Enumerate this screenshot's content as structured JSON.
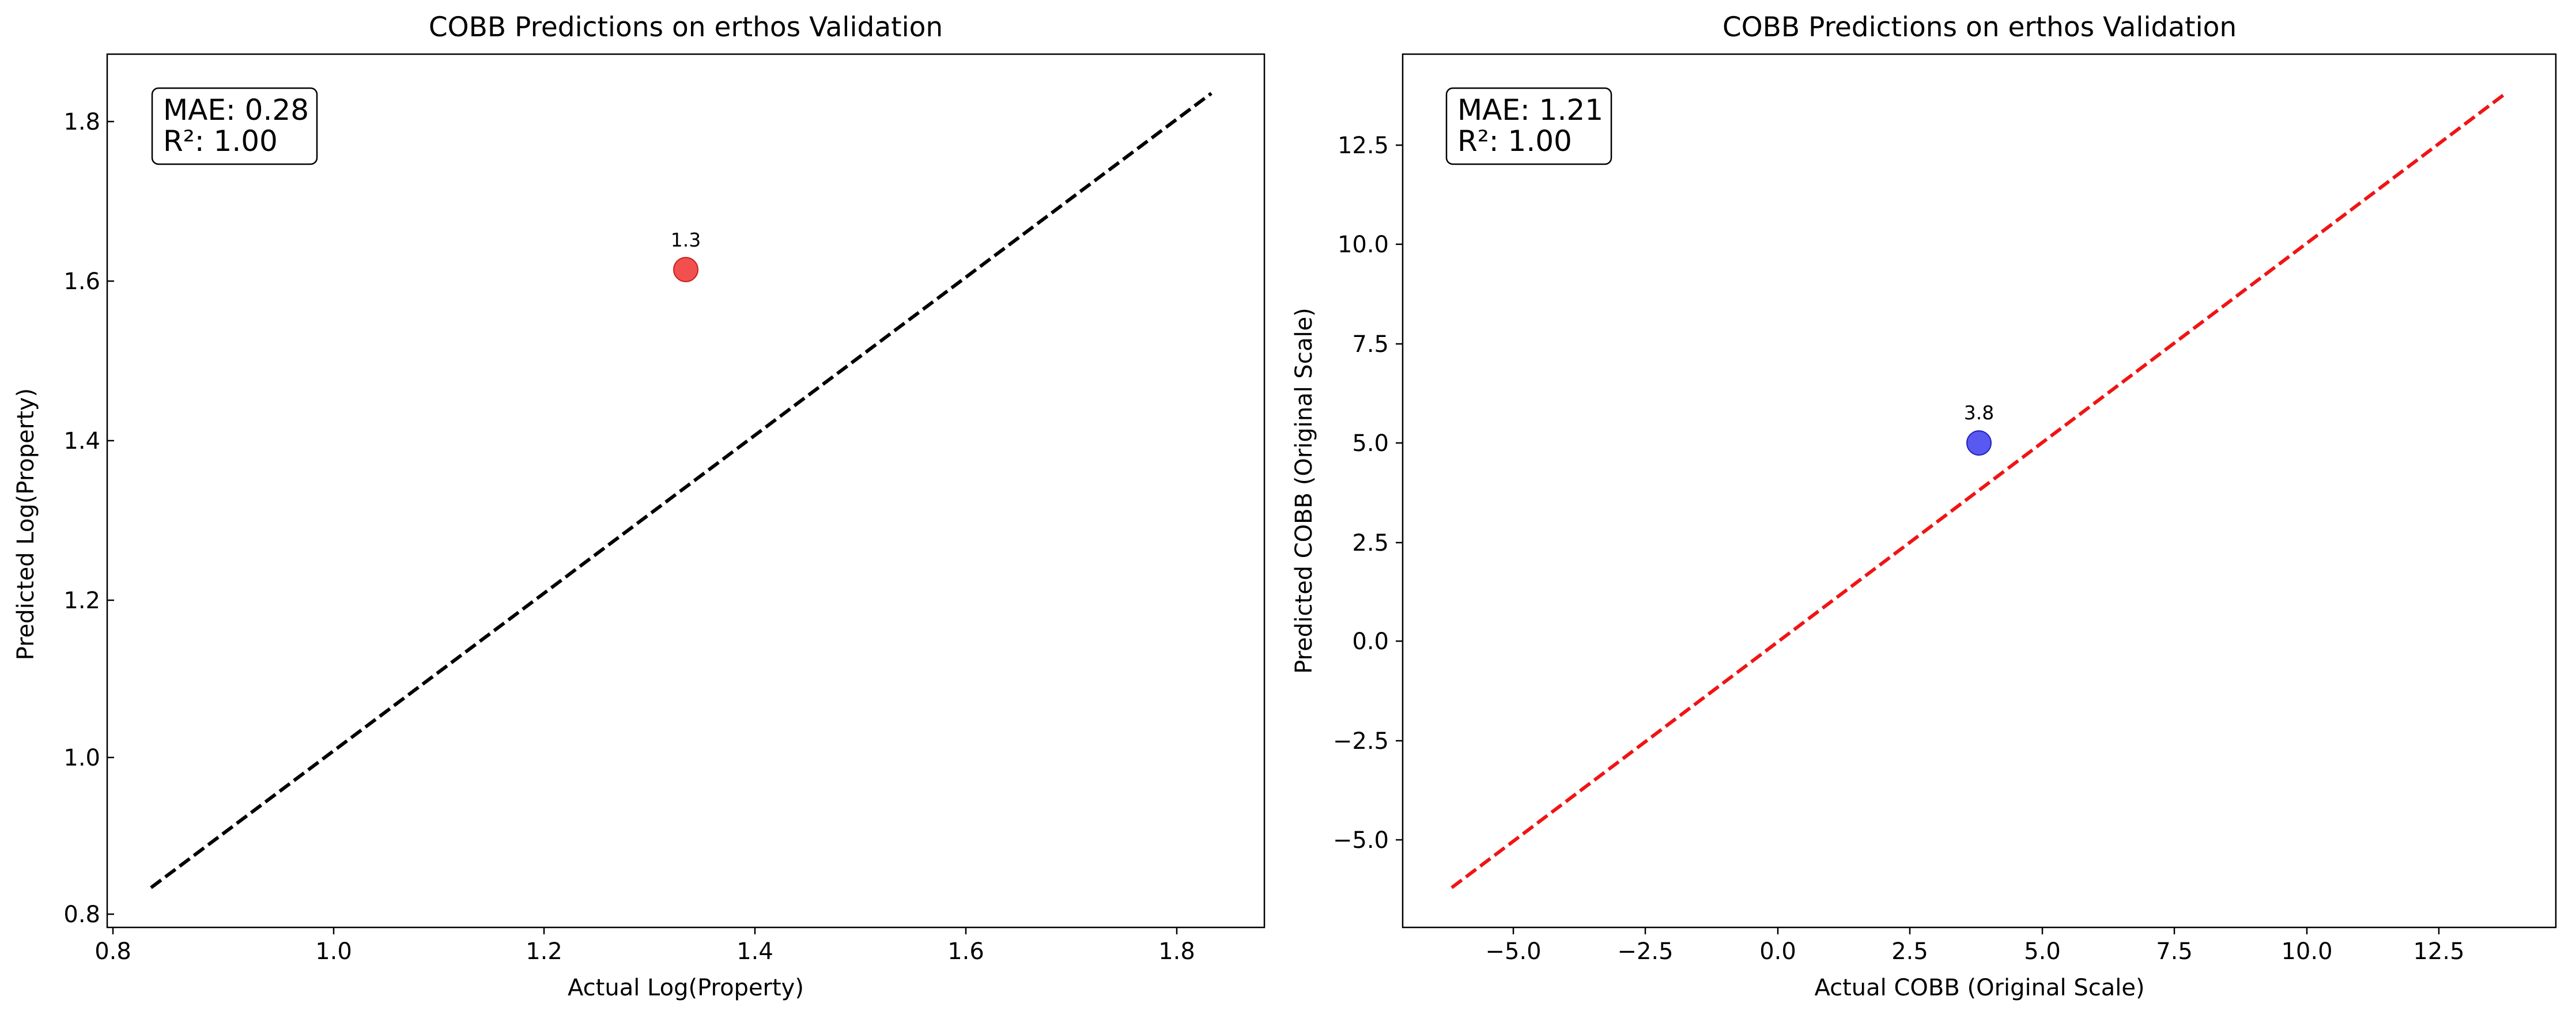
{
  "chart_data": [
    {
      "type": "scatter",
      "title": "COBB Predictions on erthos Validation",
      "xlabel": "Actual Log(Property)",
      "ylabel": "Predicted Log(Property)",
      "xlim": [
        0.79,
        1.88
      ],
      "ylim": [
        0.79,
        1.88
      ],
      "xticks": [
        0.8,
        1.0,
        1.2,
        1.4,
        1.6,
        1.8
      ],
      "yticks": [
        0.8,
        1.0,
        1.2,
        1.4,
        1.6,
        1.8
      ],
      "tick_labels_x": [
        "0.8",
        "1.0",
        "1.2",
        "1.4",
        "1.6",
        "1.8"
      ],
      "tick_labels_y": [
        "0.8",
        "1.0",
        "1.2",
        "1.4",
        "1.6",
        "1.8"
      ],
      "points": [
        {
          "x": 1.335,
          "y": 1.612,
          "label": "1.3"
        }
      ],
      "point_color": "#f03030",
      "reference_line": {
        "from": [
          0.835,
          0.835
        ],
        "to": [
          1.835,
          1.835
        ],
        "color": "#000000",
        "style": "dashed"
      },
      "stats": {
        "line1": "MAE: 0.28",
        "line2": "R²: 1.00"
      },
      "grid": false
    },
    {
      "type": "scatter",
      "title": "COBB Predictions on erthos Validation",
      "xlabel": "Actual COBB (Original Scale)",
      "ylabel": "Predicted COBB (Original Scale)",
      "xlim": [
        -7.2,
        14.8
      ],
      "ylim": [
        -7.2,
        14.8
      ],
      "xticks": [
        -5.0,
        -2.5,
        0.0,
        2.5,
        5.0,
        7.5,
        10.0,
        12.5
      ],
      "yticks": [
        -5.0,
        -2.5,
        0.0,
        2.5,
        5.0,
        7.5,
        10.0,
        12.5
      ],
      "tick_labels_x": [
        "−5.0",
        "−2.5",
        "0.0",
        "2.5",
        "5.0",
        "7.5",
        "10.0",
        "12.5"
      ],
      "tick_labels_y": [
        "−5.0",
        "−2.5",
        "0.0",
        "2.5",
        "5.0",
        "7.5",
        "10.0",
        "12.5"
      ],
      "points": [
        {
          "x": 3.8,
          "y": 5.0,
          "label": "3.8"
        }
      ],
      "point_color": "#3c3cf0",
      "reference_line": {
        "from": [
          -6.2,
          -6.2
        ],
        "to": [
          13.7,
          13.7
        ],
        "color": "#f01414",
        "style": "dashed"
      },
      "stats": {
        "line1": "MAE: 1.21",
        "line2": "R²: 1.00"
      },
      "grid": false
    }
  ]
}
